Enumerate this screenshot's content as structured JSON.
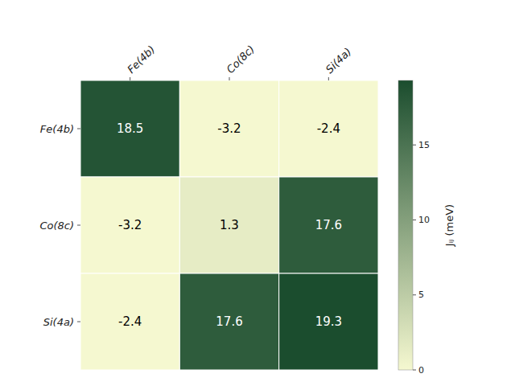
{
  "chart_data": {
    "type": "heatmap",
    "categories": [
      "Fe(4b)",
      "Co(8c)",
      "Si(4a)"
    ],
    "values": [
      [
        18.5,
        -3.2,
        -2.4
      ],
      [
        -3.2,
        1.3,
        17.6
      ],
      [
        -2.4,
        17.6,
        19.3
      ]
    ],
    "data_labels": true,
    "colorbar_label": "Jᵢⱼ (meV)",
    "colorbar_range": [
      0,
      19.3
    ],
    "colorbar_ticks": [
      0,
      5,
      10,
      15
    ]
  }
}
